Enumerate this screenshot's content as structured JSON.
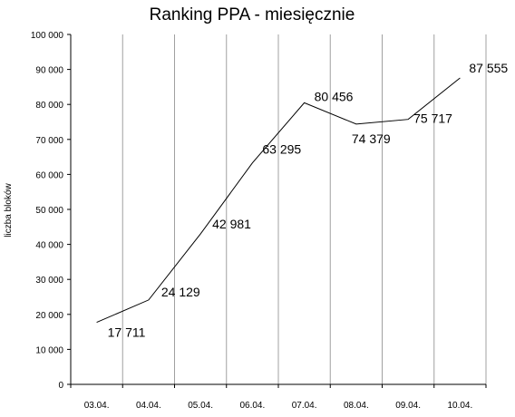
{
  "chart_data": {
    "type": "line",
    "title": "Ranking PPA - miesięcznie",
    "xlabel": "",
    "ylabel": "liczba bloków",
    "categories": [
      "03.04.",
      "04.04.",
      "05.04.",
      "06.04.",
      "07.04.",
      "08.04.",
      "09.04.",
      "10.04."
    ],
    "series": [
      {
        "values": [
          17711,
          24129,
          42981,
          63295,
          80456,
          74379,
          75717,
          87555
        ],
        "labels": [
          "17 711",
          "24 129",
          "42 981",
          "63 295",
          "80 456",
          "74 379",
          "75 717",
          "87 555"
        ]
      }
    ],
    "ylim": [
      0,
      100000
    ],
    "yticks": [
      0,
      10000,
      20000,
      30000,
      40000,
      50000,
      60000,
      70000,
      80000,
      90000,
      100000
    ],
    "ytick_labels": [
      "0",
      "10 000",
      "20 000",
      "30 000",
      "40 000",
      "50 000",
      "60 000",
      "70 000",
      "80 000",
      "90 000",
      "100 000"
    ],
    "grid": "vertical",
    "line_color": "#000000",
    "grid_color": "#a0a0a0"
  }
}
